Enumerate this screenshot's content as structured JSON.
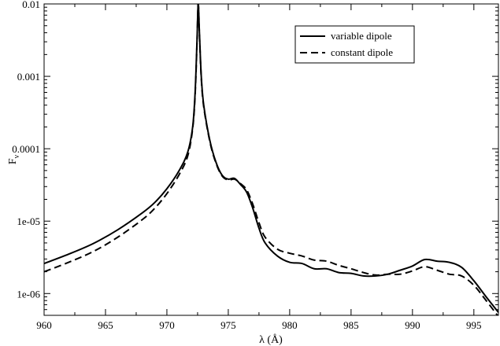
{
  "chart_data": {
    "type": "line",
    "title": "",
    "xlabel": "λ (Å)",
    "ylabel": "Fν",
    "ylabel_main": "F",
    "ylabel_sub": "ν",
    "xlim": [
      960,
      997
    ],
    "ylim": [
      5e-07,
      0.01
    ],
    "yscale": "log",
    "grid": false,
    "legend_position": "top-right",
    "x_ticks": [
      960,
      965,
      970,
      975,
      980,
      985,
      990,
      995
    ],
    "x_tick_labels": [
      "960",
      "965",
      "970",
      "975",
      "980",
      "985",
      "990",
      "995"
    ],
    "y_ticks": [
      1e-06,
      1e-05,
      0.0001,
      0.001,
      0.01
    ],
    "y_tick_labels": [
      "1e-06",
      "1e-05",
      "0.0001",
      "0.001",
      "0.01"
    ],
    "series": [
      {
        "name": "variable dipole",
        "style": "solid",
        "color": "#000000",
        "points": [
          [
            960,
            2.6e-06
          ],
          [
            962,
            3.5e-06
          ],
          [
            964,
            4.9e-06
          ],
          [
            966,
            7.6e-06
          ],
          [
            968,
            1.3e-05
          ],
          [
            969,
            1.8e-05
          ],
          [
            970,
            2.8e-05
          ],
          [
            971,
            5e-05
          ],
          [
            971.7,
            9e-05
          ],
          [
            972.1,
            0.0002
          ],
          [
            972.3,
            0.0006
          ],
          [
            972.45,
            0.003
          ],
          [
            972.55,
            0.01
          ],
          [
            972.65,
            0.004
          ],
          [
            972.8,
            0.001
          ],
          [
            973.0,
            0.0004
          ],
          [
            973.5,
            0.00013
          ],
          [
            974,
            6.5e-05
          ],
          [
            974.5,
            4.3e-05
          ],
          [
            975,
            3.8e-05
          ],
          [
            975.5,
            3.9e-05
          ],
          [
            976,
            3.2e-05
          ],
          [
            976.5,
            2.5e-05
          ],
          [
            977,
            1.5e-05
          ],
          [
            977.5,
            8e-06
          ],
          [
            978,
            5e-06
          ],
          [
            979,
            3.3e-06
          ],
          [
            980,
            2.7e-06
          ],
          [
            981,
            2.6e-06
          ],
          [
            982,
            2.2e-06
          ],
          [
            983,
            2.2e-06
          ],
          [
            984,
            1.95e-06
          ],
          [
            985,
            1.9e-06
          ],
          [
            986,
            1.75e-06
          ],
          [
            987,
            1.75e-06
          ],
          [
            988,
            1.85e-06
          ],
          [
            989,
            2.1e-06
          ],
          [
            990,
            2.4e-06
          ],
          [
            991,
            2.95e-06
          ],
          [
            992,
            2.8e-06
          ],
          [
            993,
            2.7e-06
          ],
          [
            994,
            2.3e-06
          ],
          [
            995,
            1.5e-06
          ],
          [
            996,
            9e-07
          ],
          [
            997,
            5.5e-07
          ]
        ]
      },
      {
        "name": "constant dipole",
        "style": "dashed",
        "color": "#000000",
        "points": [
          [
            960,
            2e-06
          ],
          [
            962,
            2.7e-06
          ],
          [
            964,
            3.8e-06
          ],
          [
            966,
            6e-06
          ],
          [
            968,
            1.05e-05
          ],
          [
            969,
            1.5e-05
          ],
          [
            970,
            2.4e-05
          ],
          [
            971,
            4.4e-05
          ],
          [
            971.7,
            8e-05
          ],
          [
            972.1,
            0.00019
          ],
          [
            972.3,
            0.00055
          ],
          [
            972.45,
            0.0028
          ],
          [
            972.55,
            0.01
          ],
          [
            972.65,
            0.0038
          ],
          [
            972.8,
            0.00095
          ],
          [
            973.0,
            0.00038
          ],
          [
            973.5,
            0.000125
          ],
          [
            974,
            6.3e-05
          ],
          [
            974.5,
            4.2e-05
          ],
          [
            975,
            3.7e-05
          ],
          [
            975.5,
            3.8e-05
          ],
          [
            976,
            3.3e-05
          ],
          [
            976.5,
            2.7e-05
          ],
          [
            977,
            1.7e-05
          ],
          [
            977.5,
            9.5e-06
          ],
          [
            978,
            6e-06
          ],
          [
            979,
            4.1e-06
          ],
          [
            980,
            3.6e-06
          ],
          [
            981,
            3.3e-06
          ],
          [
            982,
            2.9e-06
          ],
          [
            983,
            2.8e-06
          ],
          [
            984,
            2.45e-06
          ],
          [
            985,
            2.2e-06
          ],
          [
            986,
            1.95e-06
          ],
          [
            987,
            1.8e-06
          ],
          [
            988,
            1.85e-06
          ],
          [
            989,
            1.85e-06
          ],
          [
            990,
            2.05e-06
          ],
          [
            991,
            2.35e-06
          ],
          [
            992,
            2.1e-06
          ],
          [
            993,
            1.85e-06
          ],
          [
            994,
            1.75e-06
          ],
          [
            995,
            1.3e-06
          ],
          [
            996,
            8e-07
          ],
          [
            997,
            4.8e-07
          ]
        ]
      }
    ]
  }
}
